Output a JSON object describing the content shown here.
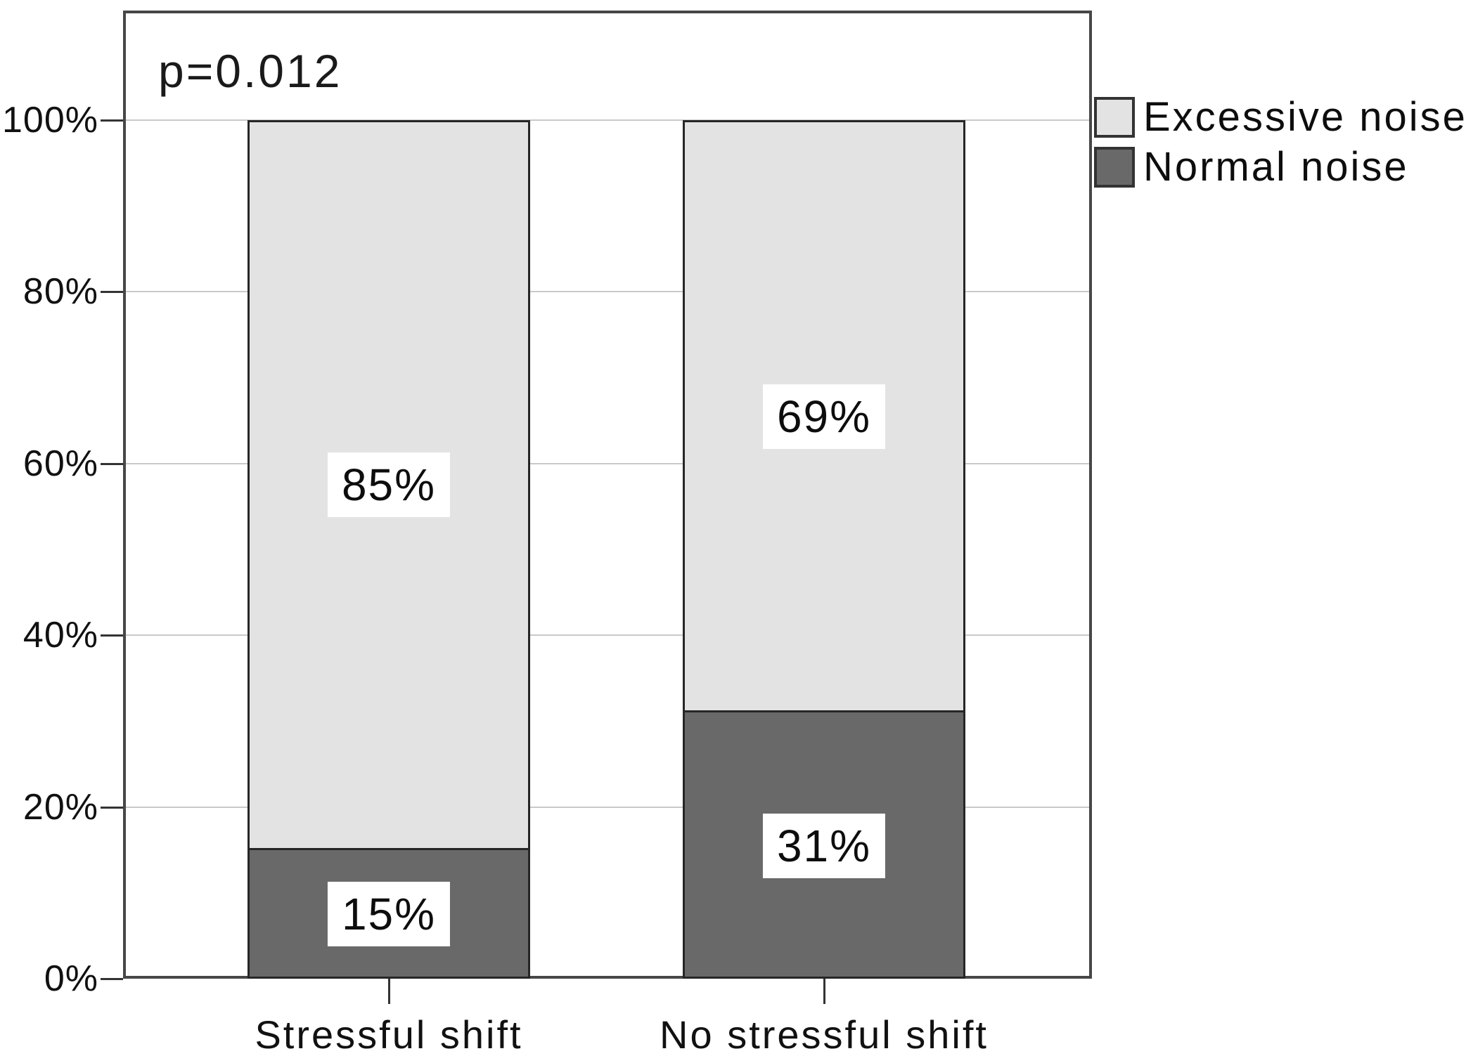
{
  "chart_data": {
    "type": "bar",
    "stacked": true,
    "orientation": "vertical",
    "title": "",
    "xlabel": "",
    "ylabel": "",
    "annotation": "p=0.012",
    "categories": [
      "Stressful shift",
      "No stressful shift"
    ],
    "series": [
      {
        "name": "Excessive noise",
        "values": [
          85,
          69
        ],
        "labels": [
          "85%",
          "69%"
        ],
        "color": "#e3e3e3"
      },
      {
        "name": "Normal noise",
        "values": [
          15,
          31
        ],
        "labels": [
          "15%",
          "31%"
        ],
        "color": "#696969"
      }
    ],
    "ylim": [
      0,
      100
    ],
    "yticks": [
      {
        "value": 0,
        "label": "0%"
      },
      {
        "value": 20,
        "label": "20%"
      },
      {
        "value": 40,
        "label": "40%"
      },
      {
        "value": 60,
        "label": "60%"
      },
      {
        "value": 80,
        "label": "80%"
      },
      {
        "value": 100,
        "label": "100%"
      }
    ],
    "grid": true,
    "legend_position": "top-right-outside",
    "colors": {
      "light_fill": "#e3e3e3",
      "dark_fill": "#696969",
      "bar_border": "#262626",
      "plot_frame": "#474747",
      "gridline": "#c9c9c9",
      "text": "#111111",
      "label_box_background": "#ffffff"
    }
  }
}
